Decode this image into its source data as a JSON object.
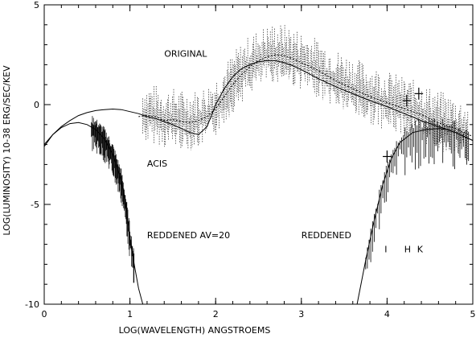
{
  "chart_data": {
    "type": "line",
    "xlabel": "LOG(WAVELENGTH) ANGSTROEMS",
    "ylabel": "LOG(LUMINOSITY) 10-38 ERG/SEC/KEV",
    "xlim": [
      0,
      5
    ],
    "ylim": [
      -10,
      5
    ],
    "xticks": [
      {
        "value": 0,
        "label": "0"
      },
      {
        "value": 1,
        "label": "1"
      },
      {
        "value": 2,
        "label": "2"
      },
      {
        "value": 3,
        "label": "3"
      },
      {
        "value": 4,
        "label": "4"
      },
      {
        "value": 5,
        "label": "5"
      }
    ],
    "yticks": [
      {
        "value": 5,
        "label": "5"
      },
      {
        "value": 0,
        "label": "0"
      },
      {
        "value": -5,
        "label": "-5"
      },
      {
        "value": -10,
        "label": "-10"
      }
    ],
    "annotations": [
      {
        "text": "ORIGINAL",
        "x": 1.4,
        "y": 2.4
      },
      {
        "text": "ACIS",
        "x": 1.2,
        "y": -3.1
      },
      {
        "text": "REDDENED AV=20",
        "x": 1.2,
        "y": -6.7
      },
      {
        "text": "REDDENED",
        "x": 3.0,
        "y": -6.7
      },
      {
        "text": "I",
        "x": 3.97,
        "y": -7.4
      },
      {
        "text": "H",
        "x": 4.2,
        "y": -7.4
      },
      {
        "text": "K",
        "x": 4.35,
        "y": -7.4
      }
    ],
    "series": [
      {
        "style": "solid",
        "x": [
          0,
          0.1,
          0.2,
          0.3,
          0.4,
          0.5,
          0.6,
          0.7,
          0.8,
          0.9,
          1.0,
          1.1,
          1.2,
          1.3,
          1.4,
          1.5,
          1.6,
          1.7,
          1.8,
          1.9,
          2.0,
          2.1,
          2.2,
          2.3,
          2.4,
          2.5,
          2.6,
          2.7,
          2.8,
          2.9,
          3.0,
          3.2,
          3.4,
          3.6,
          3.8,
          4.0,
          4.2,
          4.4,
          4.6,
          4.8,
          5.0
        ],
        "y": [
          -2.0,
          -1.5,
          -1.1,
          -0.8,
          -0.55,
          -0.4,
          -0.3,
          -0.25,
          -0.22,
          -0.25,
          -0.35,
          -0.45,
          -0.6,
          -0.7,
          -0.85,
          -1.0,
          -1.2,
          -1.4,
          -1.5,
          -1.1,
          0.0,
          0.8,
          1.4,
          1.8,
          2.0,
          2.15,
          2.2,
          2.2,
          2.1,
          1.95,
          1.75,
          1.3,
          0.9,
          0.55,
          0.2,
          -0.1,
          -0.45,
          -0.8,
          -1.1,
          -1.4,
          -1.8
        ]
      },
      {
        "style": "solid",
        "x": [
          0,
          0.1,
          0.2,
          0.3,
          0.4,
          0.5,
          0.6,
          0.7,
          0.8,
          0.9,
          0.95,
          1.0,
          1.05,
          1.1,
          1.15
        ],
        "y": [
          -2.1,
          -1.5,
          -1.15,
          -0.95,
          -0.9,
          -1.0,
          -1.25,
          -1.7,
          -2.5,
          -3.8,
          -5.0,
          -6.6,
          -8.0,
          -9.2,
          -10.0
        ]
      },
      {
        "style": "solid",
        "x": [
          3.65,
          3.75,
          3.85,
          3.95,
          4.05,
          4.15,
          4.3,
          4.45,
          4.6,
          4.7,
          4.8,
          4.9,
          5.0
        ],
        "y": [
          -10.0,
          -7.8,
          -5.8,
          -4.0,
          -2.7,
          -1.9,
          -1.4,
          -1.25,
          -1.2,
          -1.25,
          -1.4,
          -1.6,
          -1.8
        ]
      },
      {
        "style": "dotted",
        "x": [
          1.1,
          1.2,
          1.3,
          1.4,
          1.5,
          1.6,
          1.7,
          1.8,
          1.9,
          2.0,
          2.1,
          2.2,
          2.3,
          2.4,
          2.5,
          2.6,
          2.7,
          2.8,
          2.9,
          3.0,
          3.2,
          3.4,
          3.6,
          3.8,
          4.0,
          4.2,
          4.4,
          4.6,
          4.8,
          5.0
        ],
        "y": [
          -0.6,
          -0.55,
          -0.6,
          -0.8,
          -0.75,
          -0.85,
          -0.9,
          -0.8,
          -0.6,
          -0.2,
          0.4,
          1.0,
          1.5,
          1.9,
          2.2,
          2.4,
          2.5,
          2.45,
          2.3,
          2.1,
          1.7,
          1.2,
          0.8,
          0.4,
          0.1,
          -0.2,
          -0.5,
          -0.9,
          -1.2,
          -1.6
        ]
      }
    ],
    "error_bars": [
      {
        "x": 4.0,
        "y": -2.6,
        "xerr": 0.05,
        "yerr": 0.3
      },
      {
        "x": 4.23,
        "y": 0.2,
        "xerr": 0.05,
        "yerr": 0.3
      },
      {
        "x": 4.37,
        "y": 0.55,
        "xerr": 0.05,
        "yerr": 0.3
      }
    ]
  }
}
